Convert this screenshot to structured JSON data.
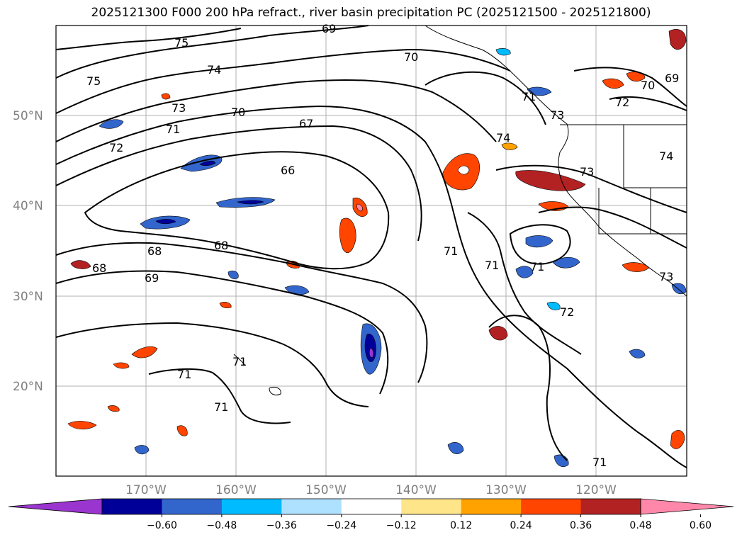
{
  "title": "2025121300 F000 200 hPa refract., river basin precipitation PC (2025121500 - 2025121800)",
  "lat_labels": [
    "50°N",
    "40°N",
    "30°N",
    "20°N"
  ],
  "lon_labels": [
    "170°W",
    "160°W",
    "150°W",
    "140°W",
    "130°W",
    "120°W"
  ],
  "contour_labels": [
    "75",
    "74",
    "75",
    "73",
    "71",
    "72",
    "70",
    "67",
    "66",
    "69",
    "70",
    "70",
    "72",
    "69",
    "74",
    "73",
    "74",
    "73",
    "68",
    "68",
    "68",
    "69",
    "71",
    "71",
    "71",
    "73",
    "72",
    "71",
    "71",
    "71",
    "71",
    "71"
  ],
  "colorbar": {
    "ticks": [
      "−0.60",
      "−0.48",
      "−0.36",
      "−0.24",
      "−0.12",
      "0.12",
      "0.24",
      "0.36",
      "0.48",
      "0.60"
    ],
    "colors": [
      "#9a35cf",
      "#000099",
      "#3366cc",
      "#00bbff",
      "#aee0ff",
      "#ffffff",
      "#ffe58a",
      "#ffa200",
      "#ff4500",
      "#b22222",
      "#ff88aa"
    ],
    "under_color": "#9a35cf",
    "over_color": "#ff88aa"
  },
  "style": {
    "grid_color": "#b0b0b0",
    "contour_color": "#000000",
    "coast_color": "#000000"
  }
}
